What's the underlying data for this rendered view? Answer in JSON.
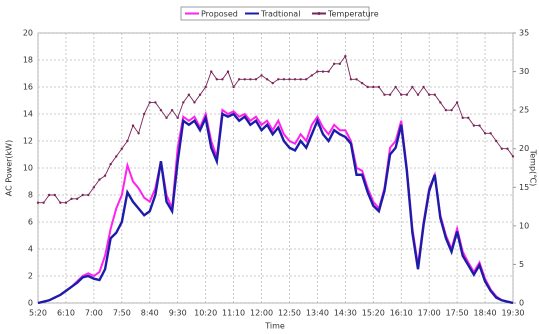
{
  "chart_data": {
    "type": "line",
    "x_label": "Time",
    "y_label": "AC Power(kW)",
    "y2_label": "Temp(℃)",
    "categories": [
      "5:20",
      null,
      null,
      null,
      null,
      "6:10",
      null,
      null,
      null,
      null,
      "7:00",
      null,
      null,
      null,
      null,
      "7:50",
      null,
      null,
      null,
      null,
      "8:40",
      null,
      null,
      null,
      null,
      "9:30",
      null,
      null,
      null,
      null,
      "10:20",
      null,
      null,
      null,
      null,
      "11:10",
      null,
      null,
      null,
      null,
      "12:00",
      null,
      null,
      null,
      null,
      "12:50",
      null,
      null,
      null,
      null,
      "13:40",
      null,
      null,
      null,
      null,
      "14:30",
      null,
      null,
      null,
      null,
      "15:20",
      null,
      null,
      null,
      null,
      "16:10",
      null,
      null,
      null,
      null,
      "17:00",
      null,
      null,
      null,
      null,
      "17:50",
      null,
      null,
      null,
      null,
      "18:40",
      null,
      null,
      null,
      null,
      "19:30"
    ],
    "series": [
      {
        "name": "Proposed",
        "color": "#ff22ee",
        "values": [
          0,
          0.1,
          0.2,
          0.4,
          0.6,
          0.9,
          1.2,
          1.6,
          2.0,
          2.2,
          2.0,
          2.3,
          3.5,
          5.5,
          7.0,
          8.0,
          10.2,
          9.0,
          8.5,
          7.8,
          7.5,
          8.5,
          10.5,
          8.0,
          7.0,
          11.5,
          13.8,
          13.5,
          13.8,
          13.0,
          14.0,
          12.0,
          10.8,
          14.3,
          14.0,
          14.2,
          13.8,
          14.0,
          13.5,
          13.8,
          13.2,
          13.5,
          12.8,
          13.5,
          12.5,
          12.0,
          11.8,
          12.5,
          12.0,
          13.2,
          13.8,
          13.0,
          12.5,
          13.2,
          12.8,
          12.8,
          12.0,
          10.0,
          9.8,
          8.5,
          7.5,
          7.0,
          8.5,
          11.5,
          12.0,
          13.5,
          10.0,
          5.5,
          2.8,
          6.0,
          8.5,
          9.5,
          6.5,
          5.0,
          4.0,
          5.5,
          3.8,
          3.0,
          2.3,
          3.0,
          1.8,
          1.0,
          0.5,
          0.2,
          0.1,
          0
        ]
      },
      {
        "name": "Tradtional",
        "color": "#1c1ca8",
        "values": [
          0,
          0.1,
          0.2,
          0.4,
          0.6,
          0.9,
          1.2,
          1.5,
          1.9,
          2.0,
          1.8,
          1.7,
          2.5,
          4.8,
          5.2,
          6.0,
          8.2,
          7.5,
          7.0,
          6.5,
          6.8,
          8.0,
          10.5,
          7.5,
          6.8,
          10.5,
          13.5,
          13.2,
          13.5,
          12.8,
          13.7,
          11.5,
          10.5,
          14.0,
          13.8,
          14.0,
          13.5,
          13.8,
          13.2,
          13.5,
          12.8,
          13.2,
          12.5,
          13.0,
          12.0,
          11.5,
          11.3,
          12.0,
          11.5,
          12.5,
          13.5,
          12.5,
          12.0,
          12.8,
          12.5,
          12.3,
          11.8,
          9.5,
          9.5,
          8.2,
          7.2,
          6.8,
          8.3,
          11.0,
          11.5,
          13.2,
          9.8,
          5.2,
          2.5,
          5.8,
          8.3,
          9.5,
          6.3,
          4.8,
          3.8,
          5.3,
          3.5,
          2.8,
          2.1,
          2.8,
          1.6,
          0.9,
          0.4,
          0.2,
          0.1,
          0
        ]
      },
      {
        "name": "Temperature",
        "color": "#7a2458",
        "axis": "y2",
        "values": [
          13,
          13,
          14,
          14,
          13,
          13,
          13.5,
          13.5,
          14,
          14,
          15,
          16,
          16.5,
          18,
          19,
          20,
          21,
          23,
          22,
          24.5,
          26,
          26,
          25,
          24,
          25,
          24,
          26,
          27,
          26,
          27,
          28,
          30,
          29,
          29,
          30,
          28,
          29,
          29,
          29,
          29,
          29.5,
          29,
          28.5,
          29,
          29,
          29,
          29,
          29,
          29,
          29.5,
          30,
          30,
          30,
          31,
          31,
          32,
          29,
          29,
          28.5,
          28,
          28,
          28,
          27,
          27,
          28,
          27,
          27,
          28,
          27,
          28,
          27,
          27,
          26,
          25,
          25,
          26,
          24,
          24,
          23,
          23,
          22,
          22,
          21,
          20,
          20,
          19
        ]
      }
    ],
    "ylim": [
      0,
      20
    ],
    "yticks": [
      0,
      2,
      4,
      6,
      8,
      10,
      12,
      14,
      16,
      18,
      20
    ],
    "y2lim": [
      0,
      35
    ],
    "y2ticks": [
      0,
      5,
      10,
      15,
      20,
      25,
      30,
      35
    ],
    "grid": true,
    "legend": "top"
  }
}
